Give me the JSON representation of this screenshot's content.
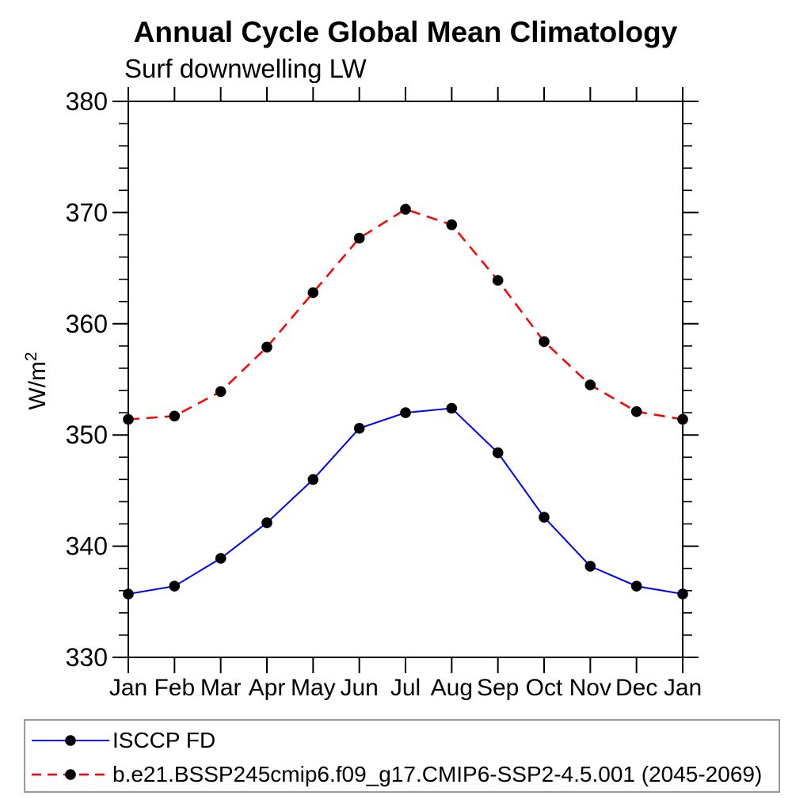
{
  "chart_data": {
    "type": "line",
    "title": "Annual Cycle Global Mean Climatology",
    "subtitle": "Surf downwelling LW",
    "ylabel_base": "W/m",
    "ylabel_exponent": "2",
    "categories": [
      "Jan",
      "Feb",
      "Mar",
      "Apr",
      "May",
      "Jun",
      "Jul",
      "Aug",
      "Sep",
      "Oct",
      "Nov",
      "Dec",
      "Jan"
    ],
    "ylim": [
      330,
      380
    ],
    "y_major_ticks": [
      330,
      340,
      350,
      360,
      370,
      380
    ],
    "y_minor_step": 2,
    "grid": false,
    "legend_position": "bottom-left-box",
    "colors": {
      "axis": "#000000",
      "marker": "#000000",
      "legend_border": "#999999",
      "series_obs": "#0000ff",
      "series_model": "#ff0000"
    },
    "series": [
      {
        "name": "ISCCP FD",
        "color": "#0000ff",
        "style": "solid",
        "marker": "filled-circle",
        "marker_color": "#000000",
        "values": [
          335.7,
          336.4,
          338.9,
          342.1,
          346.0,
          350.6,
          352.0,
          352.4,
          348.4,
          342.6,
          338.2,
          336.4,
          335.7
        ]
      },
      {
        "name": "b.e21.BSSP245cmip6.f09_g17.CMIP6-SSP2-4.5.001 (2045-2069)",
        "color": "#ff0000",
        "style": "dashed",
        "marker": "filled-circle",
        "marker_color": "#000000",
        "values": [
          351.4,
          351.7,
          353.9,
          357.9,
          362.8,
          367.7,
          370.3,
          368.9,
          363.9,
          358.4,
          354.5,
          352.1,
          351.4
        ]
      }
    ]
  }
}
